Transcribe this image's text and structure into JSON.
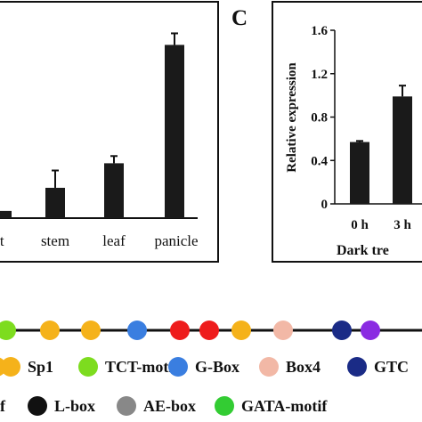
{
  "panel_label": "C",
  "chart_data": [
    {
      "type": "bar",
      "categories": [
        "ot",
        "stem",
        "leaf",
        "panicle"
      ],
      "values": [
        0.05,
        0.21,
        0.38,
        1.2
      ],
      "errors": [
        0.0,
        0.12,
        0.05,
        0.08
      ],
      "ylim": [
        0,
        1.4
      ],
      "bar_color": "#1a1a1a",
      "grid": false
    },
    {
      "type": "bar",
      "categories": [
        "0 h",
        "3 h"
      ],
      "values": [
        0.57,
        0.99
      ],
      "errors": [
        0.01,
        0.1
      ],
      "ylim": [
        0,
        1.6
      ],
      "yticks": [
        "0",
        "0.4",
        "0.8",
        "1.2",
        "1.6"
      ],
      "ylabel": "Relative expression",
      "xlabel": "Dark tre",
      "bar_color": "#1a1a1a",
      "grid": false
    }
  ],
  "gene_track": {
    "line_color": "#111111",
    "elements": [
      {
        "color": "#7ddc1f"
      },
      {
        "color": "#f5b21a"
      },
      {
        "color": "#f5b21a"
      },
      {
        "color": "#3a7ee0"
      },
      {
        "color": "#ee1c1c"
      },
      {
        "color": "#ee1c1c"
      },
      {
        "color": "#f5b21a"
      },
      {
        "color": "#f2b8a6"
      },
      {
        "color": "#1a2b86"
      },
      {
        "color": "#8a2be2"
      }
    ]
  },
  "legend": {
    "row1": [
      {
        "label": "Sp1",
        "color": "#f5b21a"
      },
      {
        "label": "TCT-motif",
        "color": "#7ddc1f"
      },
      {
        "label": "G-Box",
        "color": "#3a7ee0"
      },
      {
        "label": "Box4",
        "color": "#f2b8a6"
      },
      {
        "label": "GTC",
        "color": "#1a2b86"
      }
    ],
    "row2": [
      {
        "label": "L-box",
        "color": "#111111"
      },
      {
        "label": "AE-box",
        "color": "#888888"
      },
      {
        "label": "GATA-motif",
        "color": "#33cc33"
      }
    ]
  }
}
